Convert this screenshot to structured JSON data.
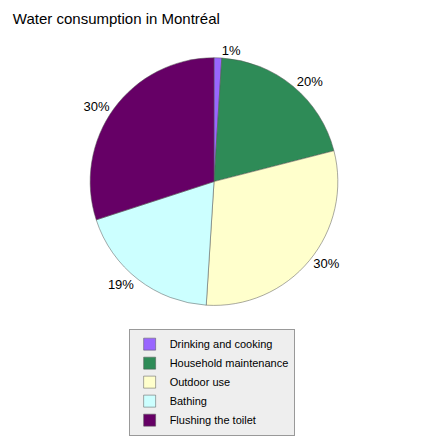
{
  "chart_data": {
    "type": "pie",
    "title": "Water consumption in Montréal",
    "categories": [
      "Drinking and cooking",
      "Household maintenance",
      "Outdoor use",
      "Bathing",
      "Flushing the toilet"
    ],
    "values": [
      1,
      20,
      30,
      19,
      30
    ],
    "value_labels": [
      "1%",
      "20%",
      "30%",
      "19%",
      "30%"
    ],
    "colors": [
      "#9966ff",
      "#2e8b57",
      "#ffffcc",
      "#ccffff",
      "#660066"
    ],
    "data_labels": true,
    "legend": "bottom"
  }
}
